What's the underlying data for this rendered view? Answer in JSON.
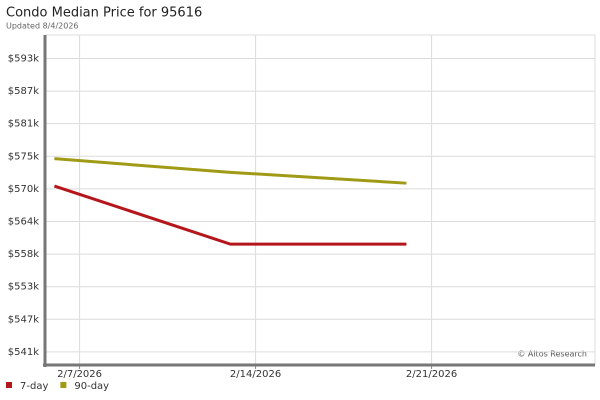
{
  "chart_data": {
    "type": "line",
    "title": "Condo Median Price for 95616",
    "subtitle": "Updated 8/4/2026",
    "annotation": "© Altos Research",
    "x": [
      "2026-02-06",
      "2026-02-13",
      "2026-02-20"
    ],
    "series": [
      {
        "name": "7-day",
        "color": "#b5161b",
        "values": [
          570200,
          560000,
          560000
        ]
      },
      {
        "name": "90-day",
        "color": "#a09a16",
        "values": [
          575000,
          572600,
          570700
        ]
      }
    ],
    "xlim": [
      "2026-02-05T15:00:00Z",
      "2026-02-27T12:00:00Z"
    ],
    "xticks": [
      {
        "value": "2026-02-07",
        "label": "2/7/2026"
      },
      {
        "value": "2026-02-14",
        "label": "2/14/2026"
      },
      {
        "value": "2026-02-21",
        "label": "2/21/2026"
      }
    ],
    "ylim": [
      538800,
      596700
    ],
    "yticks": [
      {
        "value": 541100,
        "label": "$541k"
      },
      {
        "value": 546820,
        "label": "$547k"
      },
      {
        "value": 552540,
        "label": "$553k"
      },
      {
        "value": 558260,
        "label": "$558k"
      },
      {
        "value": 563980,
        "label": "$564k"
      },
      {
        "value": 569700,
        "label": "$570k"
      },
      {
        "value": 575420,
        "label": "$575k"
      },
      {
        "value": 581140,
        "label": "$581k"
      },
      {
        "value": 586860,
        "label": "$587k"
      },
      {
        "value": 592580,
        "label": "$593k"
      }
    ],
    "grid": true,
    "legend": "bottom-left"
  }
}
